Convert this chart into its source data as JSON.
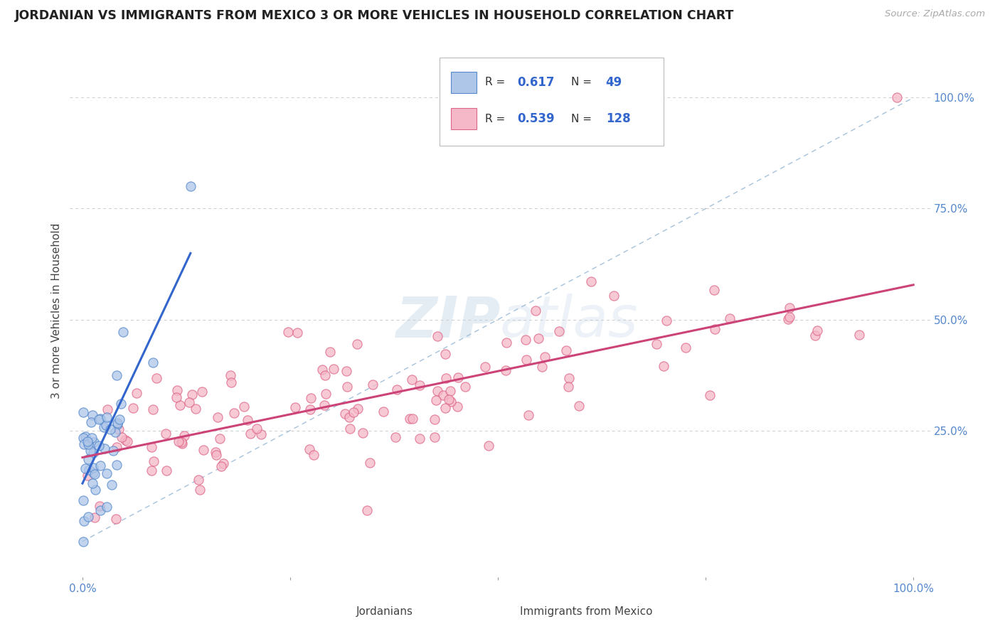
{
  "title": "JORDANIAN VS IMMIGRANTS FROM MEXICO 3 OR MORE VEHICLES IN HOUSEHOLD CORRELATION CHART",
  "source": "Source: ZipAtlas.com",
  "ylabel": "3 or more Vehicles in Household",
  "r_jordanian": 0.617,
  "n_jordanian": 49,
  "r_mexico": 0.539,
  "n_mexico": 128,
  "jordanian_fill": "#aec6e8",
  "jordanian_edge": "#5588cc",
  "mexico_fill": "#f5b8c8",
  "mexico_edge": "#dd6688",
  "jordan_line_color": "#3366cc",
  "mexico_line_color": "#cc4477",
  "diagonal_color": "#9bbcd8",
  "background_color": "#ffffff",
  "grid_color": "#cccccc",
  "watermark_color": "#c5d8e8",
  "axis_label_color": "#5588cc",
  "title_color": "#222222",
  "source_color": "#aaaaaa",
  "legend_text_color": "#333333",
  "legend_value_color": "#3366cc"
}
